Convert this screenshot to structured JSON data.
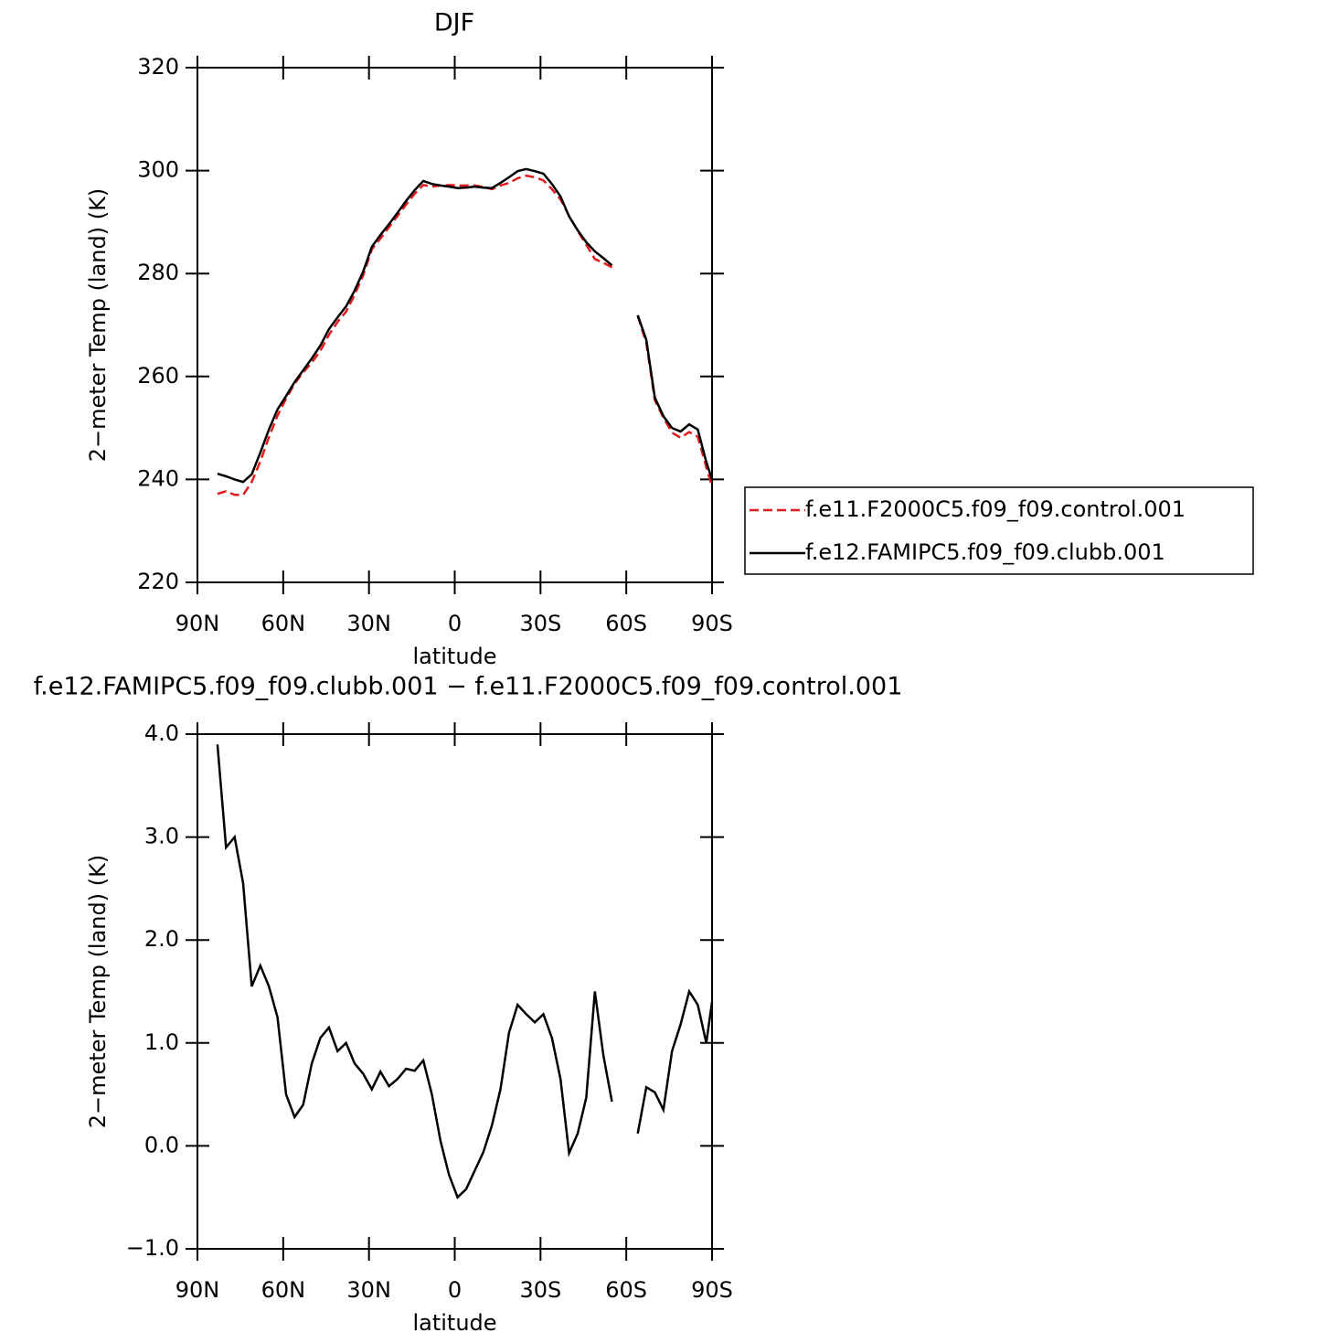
{
  "chart_data": [
    {
      "type": "line",
      "title": "DJF",
      "x_label": "latitude",
      "y_label": "2−meter Temp (land) (K)",
      "x": [
        83,
        80,
        77,
        74,
        71,
        68,
        65,
        62,
        59,
        56,
        53,
        50,
        47,
        44,
        41,
        38,
        35,
        32,
        29,
        26,
        23,
        20,
        17,
        14,
        11,
        8,
        5,
        2,
        -1,
        -4,
        -7,
        -10,
        -13,
        -16,
        -19,
        -22,
        -25,
        -28,
        -31,
        -34,
        -37,
        -40,
        -43,
        -46,
        -49,
        -52,
        -55,
        -59,
        -64,
        -67,
        -70,
        -73,
        -76,
        -79,
        -82,
        -85,
        -88,
        -90
      ],
      "series": [
        {
          "name": "f.e11.F2000C5.f09_f09.control.001",
          "color": "#e31a1c",
          "style": "dashed",
          "values": [
            237.2,
            237.7,
            237.0,
            237.0,
            239.5,
            243.5,
            248.2,
            252.4,
            255.7,
            258.6,
            260.8,
            262.7,
            265.0,
            268.1,
            270.6,
            272.6,
            275.9,
            279.7,
            284.7,
            286.8,
            289.0,
            291.2,
            293.4,
            295.5,
            297.2,
            296.9,
            297.1,
            297.2,
            297.1,
            297.1,
            297.1,
            296.8,
            296.4,
            297.1,
            297.6,
            298.5,
            299.0,
            298.7,
            298.1,
            296.4,
            294.4,
            291.2,
            288.3,
            285.6,
            282.8,
            282.1,
            281.2,
            null,
            271.8,
            266.5,
            255.4,
            252.0,
            249.1,
            248.1,
            249.2,
            248.3,
            242.4,
            238.6
          ]
        },
        {
          "name": "f.e12.FAMIPC5.f09_f09.clubb.001",
          "color": "#000000",
          "style": "solid",
          "values": [
            241.1,
            240.6,
            240.0,
            239.5,
            241.0,
            245.2,
            249.7,
            253.6,
            256.2,
            258.9,
            261.2,
            263.5,
            266.0,
            269.2,
            271.5,
            273.6,
            276.7,
            280.4,
            285.2,
            287.5,
            289.6,
            291.8,
            294.1,
            296.2,
            298.0,
            297.4,
            297.1,
            296.9,
            296.6,
            296.7,
            296.9,
            296.7,
            296.6,
            297.6,
            298.7,
            299.9,
            300.3,
            299.9,
            299.4,
            297.4,
            295.0,
            291.1,
            288.4,
            286.1,
            284.3,
            283.0,
            281.6,
            null,
            271.9,
            267.1,
            255.9,
            252.3,
            250.0,
            249.3,
            250.7,
            249.7,
            243.4,
            240.0
          ]
        }
      ],
      "xlim": [
        90,
        -90
      ],
      "xticks": [
        {
          "value": 90,
          "label": "90N"
        },
        {
          "value": 60,
          "label": "60N"
        },
        {
          "value": 30,
          "label": "30N"
        },
        0,
        {
          "value": -30,
          "label": "30S"
        },
        {
          "value": -60,
          "label": "60S"
        },
        {
          "value": -90,
          "label": "90S"
        }
      ],
      "ylim": [
        220,
        320
      ],
      "yticks": [
        220,
        240,
        260,
        280,
        300,
        320
      ],
      "legend": "right"
    },
    {
      "type": "line",
      "title": "f.e12.FAMIPC5.f09_f09.clubb.001 − f.e11.F2000C5.f09_f09.control.001",
      "x_label": "latitude",
      "y_label": "2−meter Temp (land) (K)",
      "x": [
        83,
        80,
        77,
        74,
        71,
        68,
        65,
        62,
        59,
        56,
        53,
        50,
        47,
        44,
        41,
        38,
        35,
        32,
        29,
        26,
        23,
        20,
        17,
        14,
        11,
        8,
        5,
        2,
        -1,
        -4,
        -7,
        -10,
        -13,
        -16,
        -19,
        -22,
        -25,
        -28,
        -31,
        -34,
        -37,
        -40,
        -43,
        -46,
        -49,
        -52,
        -55,
        -59,
        -64,
        -67,
        -70,
        -73,
        -76,
        -79,
        -82,
        -85,
        -88,
        -90
      ],
      "series": [
        {
          "color": "#000000",
          "style": "solid",
          "values": [
            3.9,
            2.9,
            3.0,
            2.55,
            1.55,
            1.75,
            1.55,
            1.25,
            0.5,
            0.28,
            0.4,
            0.8,
            1.05,
            1.15,
            0.92,
            1.0,
            0.8,
            0.7,
            0.55,
            0.72,
            0.58,
            0.65,
            0.75,
            0.73,
            0.83,
            0.5,
            0.05,
            -0.28,
            -0.5,
            -0.42,
            -0.24,
            -0.06,
            0.2,
            0.55,
            1.1,
            1.37,
            1.28,
            1.2,
            1.28,
            1.05,
            0.65,
            -0.07,
            0.12,
            0.47,
            1.5,
            0.88,
            0.43,
            null,
            0.12,
            0.57,
            0.52,
            0.35,
            0.92,
            1.18,
            1.5,
            1.37,
            1.0,
            1.4
          ]
        }
      ],
      "xlim": [
        90,
        -90
      ],
      "xticks": [
        {
          "value": 90,
          "label": "90N"
        },
        {
          "value": 60,
          "label": "60N"
        },
        {
          "value": 30,
          "label": "30N"
        },
        0,
        {
          "value": -30,
          "label": "30S"
        },
        {
          "value": -60,
          "label": "60S"
        },
        {
          "value": -90,
          "label": "90S"
        }
      ],
      "ylim": [
        -1,
        4
      ],
      "yticks": [
        {
          "value": -1,
          "label": "−1.0"
        },
        {
          "value": 0,
          "label": "0.0"
        },
        {
          "value": 1,
          "label": "1.0"
        },
        {
          "value": 2,
          "label": "2.0"
        },
        {
          "value": 3,
          "label": "3.0"
        },
        {
          "value": 4,
          "label": "4.0"
        }
      ]
    }
  ]
}
